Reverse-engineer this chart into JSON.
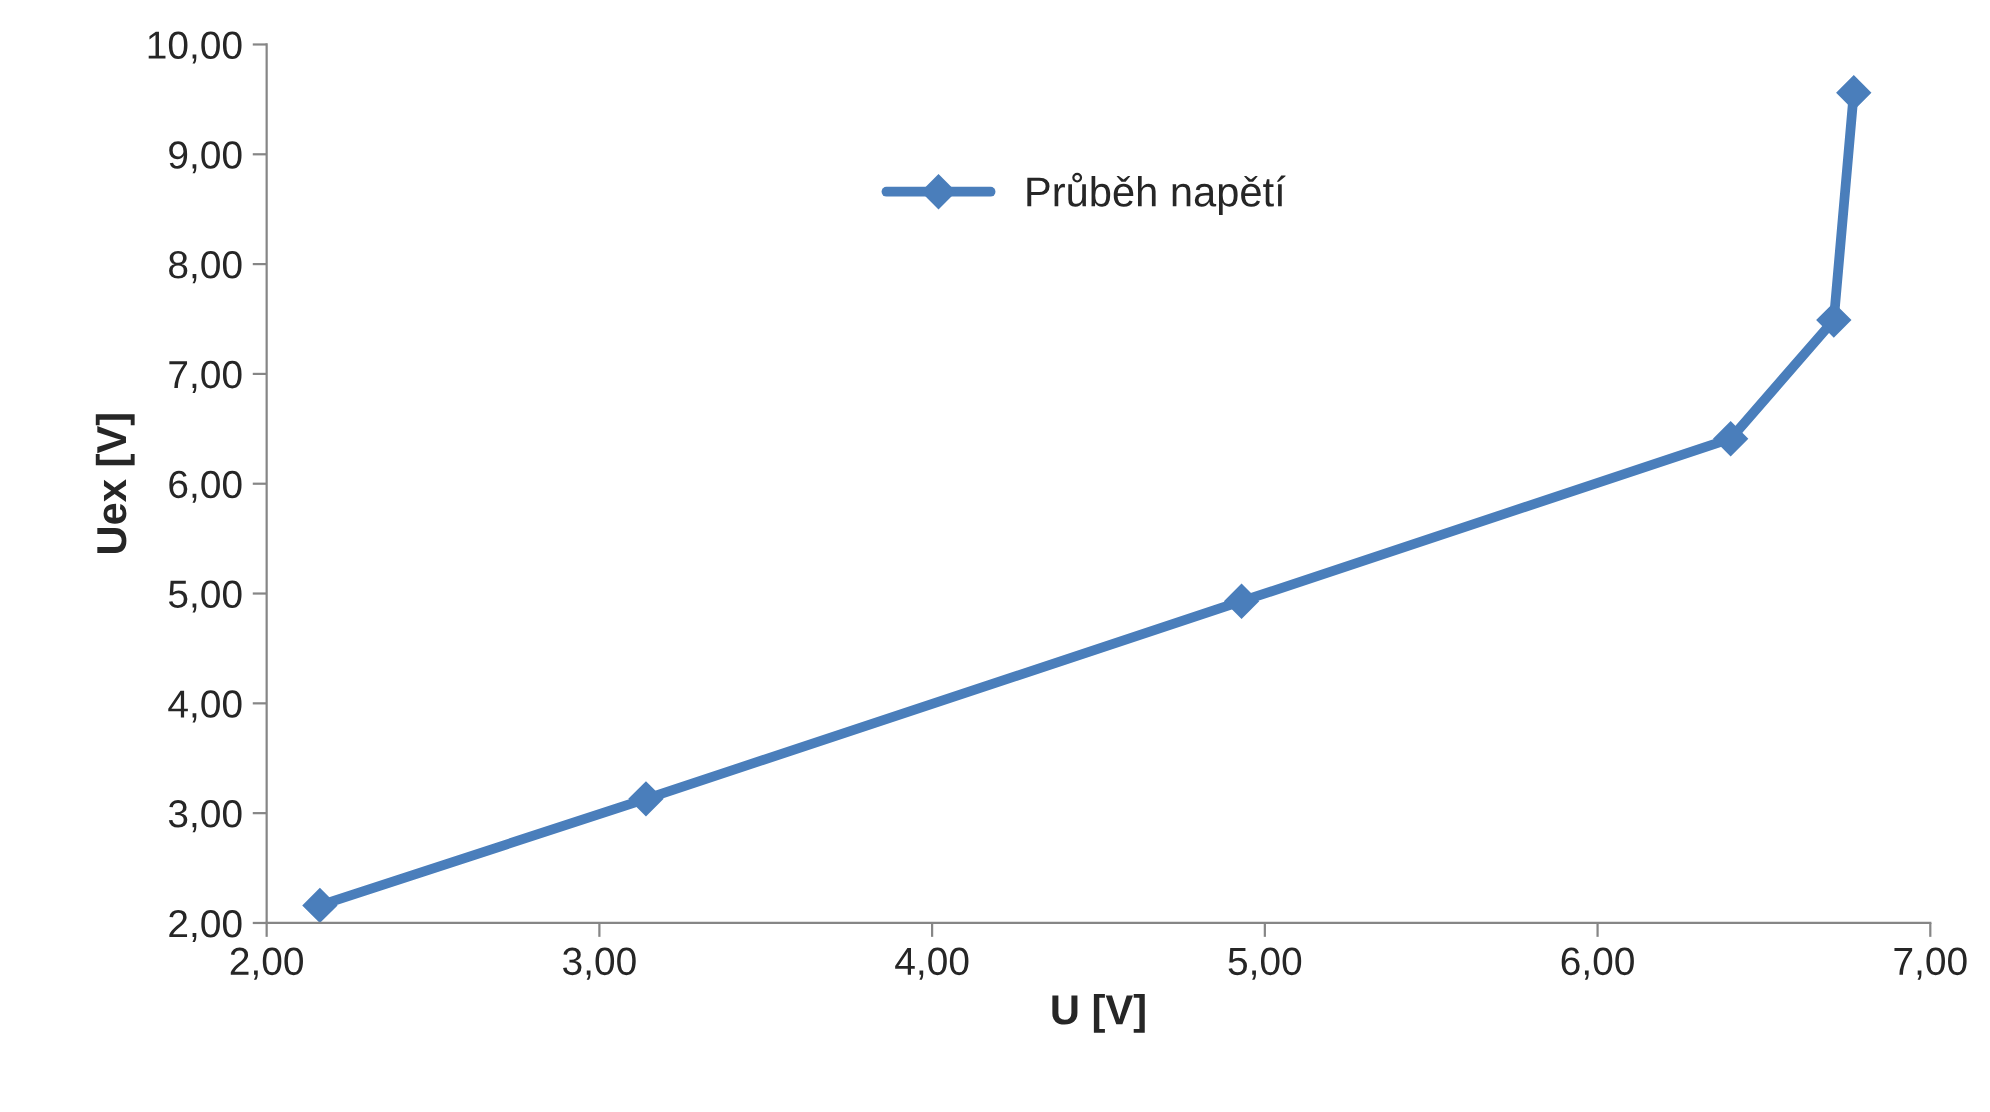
{
  "chart_data": {
    "type": "line",
    "xlabel": "U [V]",
    "ylabel": "Uex [V]",
    "x": [
      2.16,
      3.14,
      4.93,
      6.4,
      6.71,
      6.77
    ],
    "series": [
      {
        "name": "Průběh napětí",
        "color": "#4a7ebb",
        "values": [
          2.16,
          3.13,
          4.93,
          6.41,
          7.49,
          9.56
        ]
      }
    ],
    "xlim": [
      2,
      7
    ],
    "ylim": [
      2,
      10
    ],
    "xticks": [
      {
        "value": 2,
        "label": "2,00"
      },
      {
        "value": 3,
        "label": "3,00"
      },
      {
        "value": 4,
        "label": "4,00"
      },
      {
        "value": 5,
        "label": "5,00"
      },
      {
        "value": 6,
        "label": "6,00"
      },
      {
        "value": 7,
        "label": "7,00"
      }
    ],
    "yticks": [
      {
        "value": 2,
        "label": "2,00"
      },
      {
        "value": 3,
        "label": "3,00"
      },
      {
        "value": 4,
        "label": "4,00"
      },
      {
        "value": 5,
        "label": "5,00"
      },
      {
        "value": 6,
        "label": "6,00"
      },
      {
        "value": 7,
        "label": "7,00"
      },
      {
        "value": 8,
        "label": "8,00"
      },
      {
        "value": 9,
        "label": "9,00"
      },
      {
        "value": 10,
        "label": "10,00"
      }
    ],
    "marker": "diamond",
    "line_style": "solid",
    "legend": "top",
    "grid": false
  }
}
